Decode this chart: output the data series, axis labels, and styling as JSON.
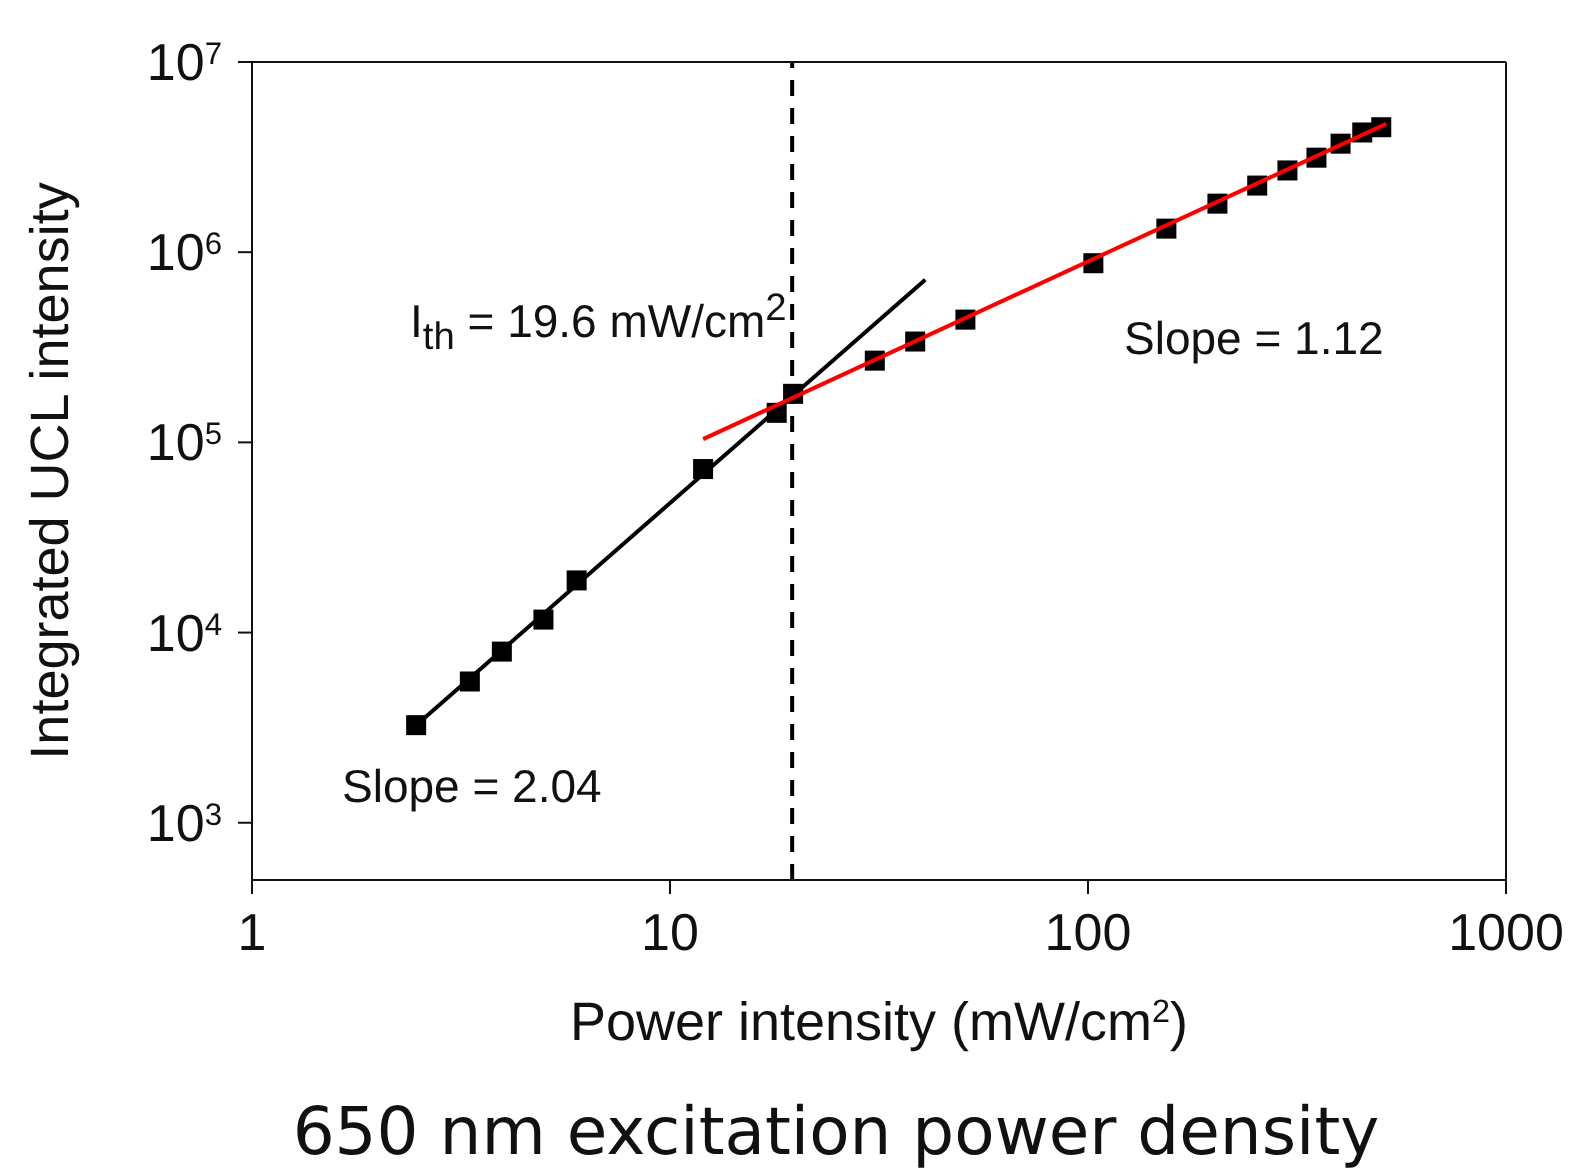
{
  "chart_data": {
    "type": "scatter",
    "xlabel": "Power intensity (mW/cm$^{2}$)",
    "ylabel": "Integrated UCL intensity",
    "log": "xy",
    "xlim": [
      1,
      1000
    ],
    "xticks": [
      1,
      10,
      100,
      1000
    ],
    "ylim": [
      500,
      10000000
    ],
    "yticks": [
      {
        "value": 1000,
        "label": "10$^{3}$"
      },
      {
        "value": 10000,
        "label": "10$^{4}$"
      },
      {
        "value": 100000,
        "label": "10$^{5}$"
      },
      {
        "value": 1000000,
        "label": "10$^{6}$"
      },
      {
        "value": 10000000,
        "label": "10$^{7}$"
      }
    ],
    "series": [
      {
        "marker": "square",
        "color": "#000000",
        "x": [
          2.47,
          3.32,
          3.96,
          4.98,
          5.98,
          12.0,
          18.0,
          19.7,
          30.9,
          38.6,
          50.9,
          103,
          154,
          204,
          254,
          300,
          352,
          402,
          453,
          503
        ],
        "values": [
          3260,
          5530,
          7940,
          11700,
          18800,
          72400,
          143000,
          180000,
          269000,
          339000,
          442000,
          875000,
          1330000,
          1800000,
          2240000,
          2690000,
          3140000,
          3720000,
          4260000,
          4540000
        ]
      },
      {
        "type": "line",
        "marker": "none",
        "color": "#000000",
        "x": [
          2.47,
          40.8
        ],
        "values": [
          3260,
          716000
        ]
      },
      {
        "type": "line",
        "marker": "none",
        "color": "#ff0000",
        "x": [
          12.0,
          517
        ],
        "values": [
          104000,
          4730000
        ]
      }
    ],
    "ref_lines": [
      {
        "axis": "x",
        "value": 19.6,
        "color": "#000000",
        "line_style": "dashed"
      }
    ],
    "annotations": [
      "I$_{th}$ = 19.6 mW/cm$^{2}$",
      "Slope = 1.12",
      "Slope = 2.04",
      "650 nm excitation power density"
    ]
  }
}
